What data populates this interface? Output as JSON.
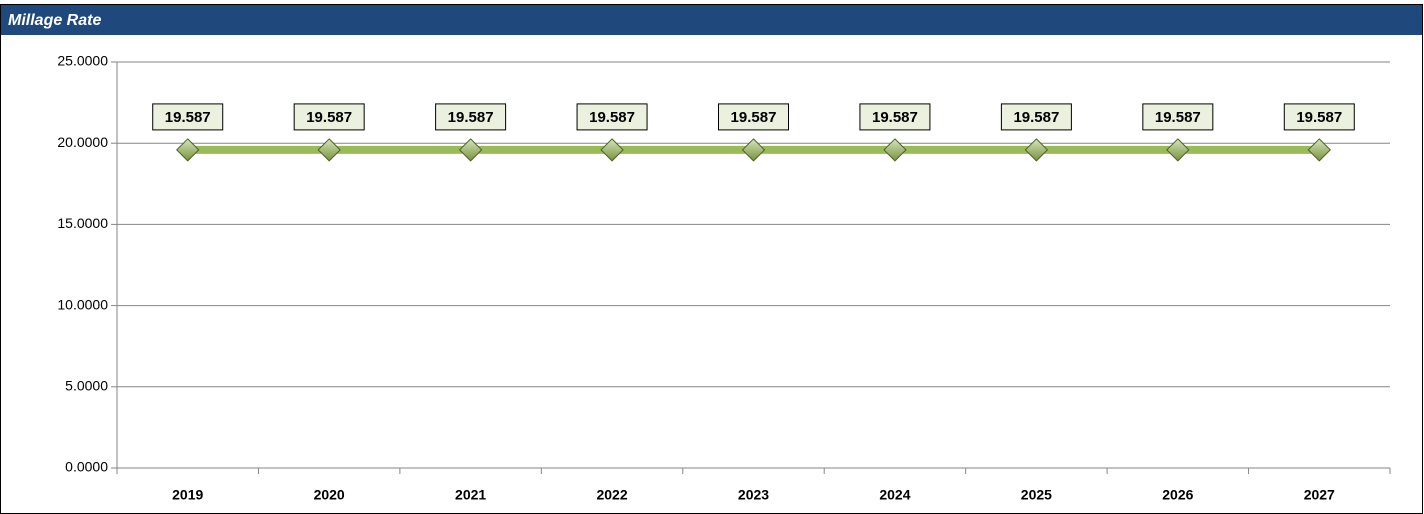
{
  "chart_data": {
    "type": "line",
    "title": "Millage Rate",
    "categories": [
      "2019",
      "2020",
      "2021",
      "2022",
      "2023",
      "2024",
      "2025",
      "2026",
      "2027"
    ],
    "series": [
      {
        "name": "Millage Rate",
        "color": "#9bbb59",
        "values": [
          19.587,
          19.587,
          19.587,
          19.587,
          19.587,
          19.587,
          19.587,
          19.587,
          19.587
        ]
      }
    ],
    "ylim": [
      0,
      25
    ],
    "yticks": [
      {
        "value": 0,
        "label": "0.0000"
      },
      {
        "value": 5,
        "label": "5.0000"
      },
      {
        "value": 10,
        "label": "10.0000"
      },
      {
        "value": 15,
        "label": "15.0000"
      },
      {
        "value": 20,
        "label": "20.0000"
      },
      {
        "value": 25,
        "label": "25.0000"
      }
    ],
    "grid": true
  }
}
